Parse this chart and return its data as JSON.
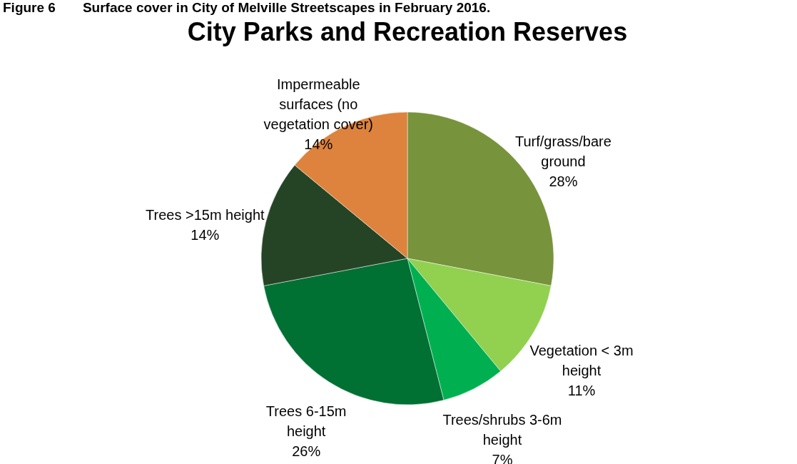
{
  "chart_data": {
    "type": "pie",
    "title": "City Parks and Recreation Reserves",
    "annotations": [
      "Figure 6  Surface cover in City of Melville Streetscapes in February 2016."
    ],
    "categories": [
      "Turf/grass/bare ground",
      "Vegetation < 3m height",
      "Trees/shrubs 3-6m height",
      "Trees 6-15m height",
      "Trees >15m height",
      "Impermeable surfaces (no vegetation cover)"
    ],
    "values": [
      28,
      11,
      7,
      26,
      14,
      14
    ],
    "value_labels": [
      "28%",
      "11%",
      "7%",
      "26%",
      "14%",
      "14%"
    ],
    "colors": [
      "#77933c",
      "#92d050",
      "#00b050",
      "#007033",
      "#254426",
      "#dd833d"
    ]
  }
}
